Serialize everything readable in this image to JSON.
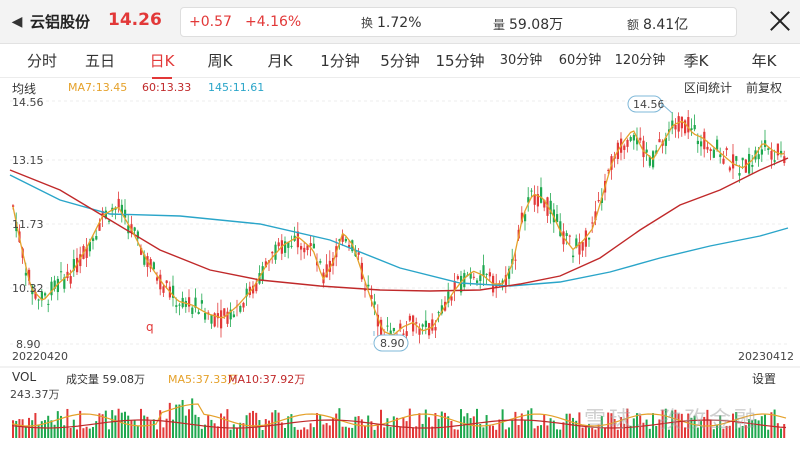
{
  "header": {
    "back_icon": "chevron-left-icon",
    "stock_name": "云铝股份",
    "price": "14.26",
    "change": "+0.57",
    "change_pct": "+4.16%",
    "turnover_label": "换",
    "turnover_value": "1.72%",
    "volume_label": "量",
    "volume_value": "59.08万",
    "amount_label": "额",
    "amount_value": "8.41亿",
    "close_icon": "close-icon"
  },
  "tabs": [
    "分时",
    "五日",
    "日K",
    "周K",
    "月K",
    "1分钟",
    "5分钟",
    "15分钟",
    "30分钟",
    "60分钟",
    "120分钟",
    "季K",
    "年K"
  ],
  "active_tab": "日K",
  "indicators": {
    "label": "均线",
    "ma7": "MA7:13.45",
    "ma60": "60:13.33",
    "ma145": "145:11.61",
    "range_stats": "区间统计",
    "adjust": "前复权"
  },
  "price_axis": {
    "top": "14.56",
    "mid1": "13.15",
    "mid2": "11.73",
    "mid3": "10.32",
    "bottom": "8.90"
  },
  "annotations": {
    "high": "14.56",
    "low": "8.90",
    "q_mark": "q"
  },
  "dates": {
    "start": "20220420",
    "end": "20230412"
  },
  "volume": {
    "label": "VOL",
    "amount": "成交量 59.08万",
    "ma5": "MA5:37.33万",
    "ma10": "MA10:37.92万",
    "settings": "设置",
    "max": "243.37万"
  },
  "watermark": "雪球：孜孜金融",
  "colors": {
    "up": "#e23838",
    "down": "#1fa84f",
    "ma7": "#e5a12a",
    "ma60": "#c0292a",
    "ma145": "#2aa5c9"
  }
}
